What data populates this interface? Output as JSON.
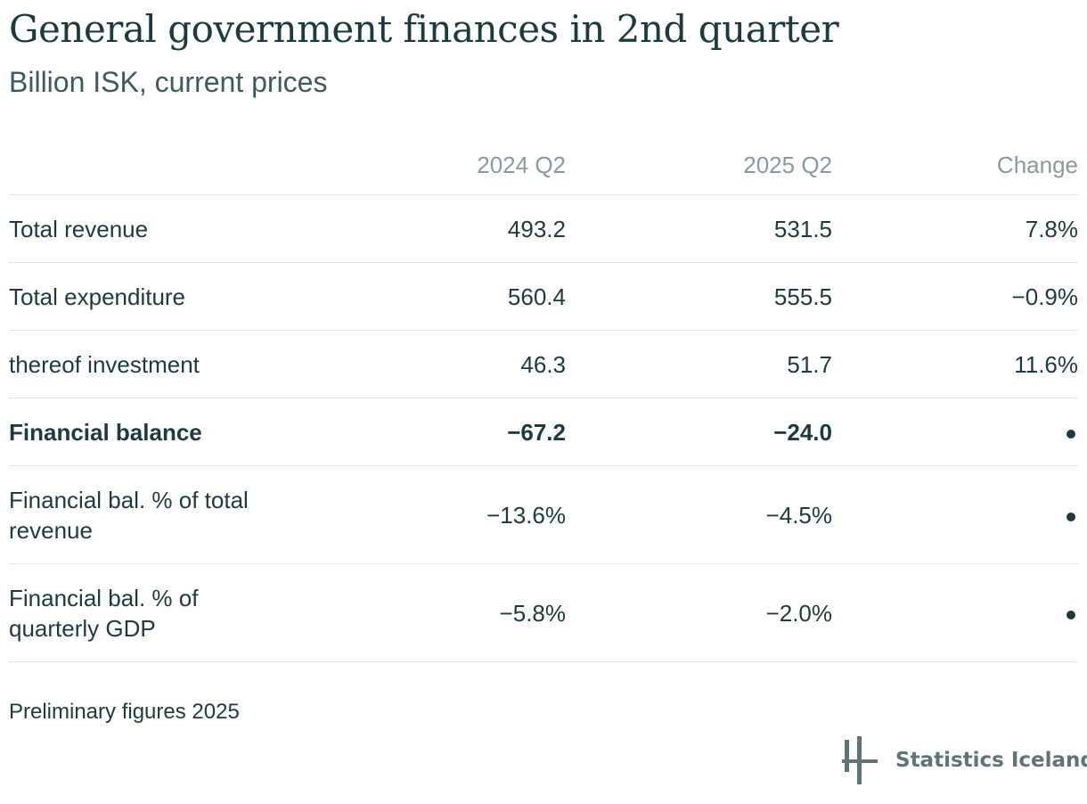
{
  "title": "General government finances in 2nd quarter",
  "subtitle": "Billion ISK, current prices",
  "table": {
    "headers": [
      "",
      "2024 Q2",
      "2025 Q2",
      "Change"
    ],
    "rows": [
      {
        "label": "Total revenue",
        "v2024": "493.2",
        "v2025": "531.5",
        "change": "7.8%"
      },
      {
        "label": "Total expenditure",
        "v2024": "560.4",
        "v2025": "555.5",
        "change": "−0.9%"
      },
      {
        "label": "thereof investment",
        "v2024": "46.3",
        "v2025": "51.7",
        "change": "11.6%"
      },
      {
        "label": "Financial balance",
        "v2024": "−67.2",
        "v2025": "−24.0",
        "change": null
      },
      {
        "label": "Financial bal. % of total revenue",
        "v2024": "−13.6%",
        "v2025": "−4.5%",
        "change": null
      },
      {
        "label": "Financial bal. % of quarterly GDP",
        "v2024": "−5.8%",
        "v2025": "−2.0%",
        "change": null
      }
    ]
  },
  "note": "Preliminary figures 2025",
  "logo": {
    "text": "Statistics Iceland",
    "icon": "statistics-iceland-logo-icon"
  },
  "colors": {
    "text": "#1c3b40",
    "header_text": "#8a9a9c",
    "divider": "#e3e6e6",
    "logo_text": "#5f7477"
  }
}
